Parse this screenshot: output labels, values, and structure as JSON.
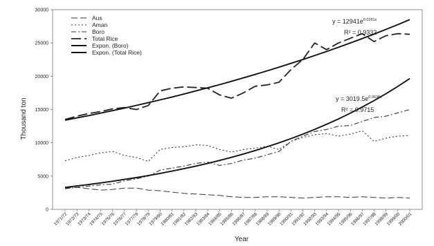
{
  "chart_data": {
    "type": "line",
    "title": "",
    "xlabel": "Year",
    "ylabel": "Thousand ton",
    "ylim": [
      0,
      30000
    ],
    "yticks": [
      0,
      5000,
      10000,
      15000,
      20000,
      25000,
      30000
    ],
    "x": [
      "1971/72",
      "1972/73",
      "1973/74",
      "1974/75",
      "1975/76",
      "1976/77",
      "1977/78",
      "1978/79",
      "1979/80",
      "1980/81",
      "1981/82",
      "1982/83",
      "1983/84",
      "1984/85",
      "1985/86",
      "1986/87",
      "1987/88",
      "1988/89",
      "1989/90",
      "1990/91",
      "1991/92",
      "1992/93",
      "1993/94",
      "1994/95",
      "1995/96",
      "1996/97",
      "1997/98",
      "1998/99",
      "1999/00",
      "2000/01"
    ],
    "series": [
      {
        "name": "Aus",
        "values": [
          3200,
          3300,
          3100,
          2900,
          3000,
          3200,
          3200,
          2900,
          2800,
          2600,
          2400,
          2300,
          2200,
          2100,
          1900,
          1800,
          1800,
          1900,
          1900,
          1800,
          1700,
          1800,
          1900,
          1900,
          1800,
          1900,
          1800,
          1700,
          1800,
          1700
        ]
      },
      {
        "name": "Aman",
        "values": [
          7300,
          7800,
          8100,
          8500,
          8700,
          8100,
          7800,
          7200,
          9000,
          9300,
          9400,
          9700,
          9600,
          9000,
          8600,
          9000,
          9200,
          9500,
          9000,
          10200,
          10800,
          11200,
          11400,
          11000,
          11300,
          11800,
          10200,
          10700,
          11000,
          11100
        ]
      },
      {
        "name": "Boro",
        "values": [
          3100,
          3300,
          3500,
          3700,
          3800,
          4300,
          4600,
          5000,
          5900,
          6200,
          6500,
          6900,
          7100,
          6600,
          6900,
          7400,
          7700,
          8200,
          8700,
          10200,
          11000,
          11700,
          12000,
          12500,
          12600,
          13200,
          13800,
          14000,
          14500,
          15000
        ]
      },
      {
        "name": "Total Rice",
        "values": [
          13500,
          14000,
          14400,
          14700,
          15100,
          15300,
          15000,
          15600,
          17800,
          18200,
          18400,
          18300,
          18200,
          17200,
          16700,
          17500,
          18500,
          18700,
          19100,
          21000,
          22500,
          25000,
          24000,
          25000,
          25700,
          26400,
          25200,
          26100,
          26400,
          26300
        ]
      },
      {
        "name": "Expon. (Boro)",
        "values": [
          3300,
          3520,
          3740,
          3980,
          4230,
          4500,
          4780,
          5080,
          5410,
          5750,
          6110,
          6500,
          6910,
          7350,
          7820,
          8310,
          8840,
          9400,
          10000,
          10630,
          11300,
          12020,
          12780,
          13590,
          14450,
          15370,
          16340,
          17380,
          18480,
          19650
        ]
      },
      {
        "name": "Expon. (Total Rice)",
        "values": [
          13400,
          13740,
          14090,
          14460,
          14830,
          15220,
          15620,
          16030,
          16450,
          16880,
          17330,
          17790,
          18260,
          18740,
          19240,
          19750,
          20270,
          20810,
          21360,
          21930,
          22510,
          23110,
          23720,
          24350,
          25000,
          25660,
          26340,
          27040,
          27760,
          28500
        ]
      }
    ],
    "annotations": [
      {
        "text": "y = 12941e",
        "sup": "0.0261x",
        "r2": "R² = 0.9332"
      },
      {
        "text": "y = 3019.5e",
        "sup": "0.0638x",
        "r2": "R² = 0.9715"
      }
    ],
    "legend_position": "top-left",
    "grid": false
  }
}
